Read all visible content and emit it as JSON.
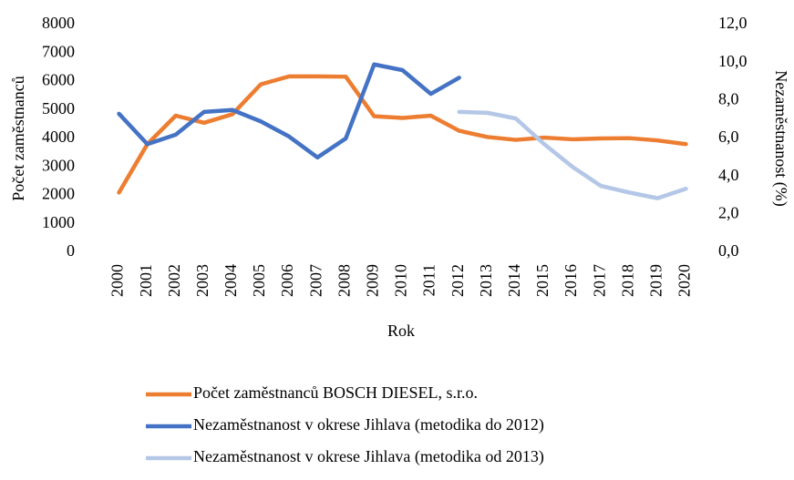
{
  "chart_data": {
    "type": "line",
    "x_label": "Rok",
    "y_label": "Počet zaměstnanců",
    "y2_label": "Nezaměstnanost (%)",
    "categories": [
      "2000",
      "2001",
      "2002",
      "2003",
      "2004",
      "2005",
      "2006",
      "2007",
      "2008",
      "2009",
      "2010",
      "2011",
      "2012",
      "2013",
      "2014",
      "2015",
      "2016",
      "2017",
      "2018",
      "2019",
      "2020"
    ],
    "series": [
      {
        "name": "Počet zaměstnanců BOSCH DIESEL, s.r.o.",
        "color": "#ed7d31",
        "axis": "y",
        "values": [
          2100,
          3800,
          4800,
          4550,
          4850,
          5900,
          6180,
          6180,
          6170,
          4780,
          4720,
          4800,
          4270,
          4050,
          3950,
          4030,
          3970,
          4000,
          4010,
          3930,
          3800
        ]
      },
      {
        "name": "Nezaměstnanost v okrese Jihlava (metodika do 2012)",
        "color": "#4472c4",
        "axis": "y2",
        "values": [
          7.3,
          5.7,
          6.2,
          7.4,
          7.5,
          6.9,
          6.1,
          5.0,
          6.0,
          9.9,
          9.6,
          8.35,
          9.2,
          null,
          null,
          null,
          null,
          null,
          null,
          null,
          null
        ]
      },
      {
        "name": "Nezaměstnanost v okrese Jihlava (metodika od 2013)",
        "color": "#b4c7e7",
        "axis": "y2",
        "values": [
          null,
          null,
          null,
          null,
          null,
          null,
          null,
          null,
          null,
          null,
          null,
          null,
          7.4,
          7.35,
          7.05,
          5.7,
          4.5,
          3.5,
          3.15,
          2.85,
          3.35
        ]
      }
    ],
    "ylim": [
      0,
      8000
    ],
    "yticks": [
      0,
      1000,
      2000,
      3000,
      4000,
      5000,
      6000,
      7000,
      8000
    ],
    "y2lim": [
      0,
      12
    ],
    "y2ticks": [
      {
        "value": 0,
        "label": "0,0"
      },
      {
        "value": 2,
        "label": "2,0"
      },
      {
        "value": 4,
        "label": "4,0"
      },
      {
        "value": 6,
        "label": "6,0"
      },
      {
        "value": 8,
        "label": "8,0"
      },
      {
        "value": 10,
        "label": "10,0"
      },
      {
        "value": 12,
        "label": "12,0"
      }
    ],
    "grid": false,
    "legend": "bottom"
  }
}
